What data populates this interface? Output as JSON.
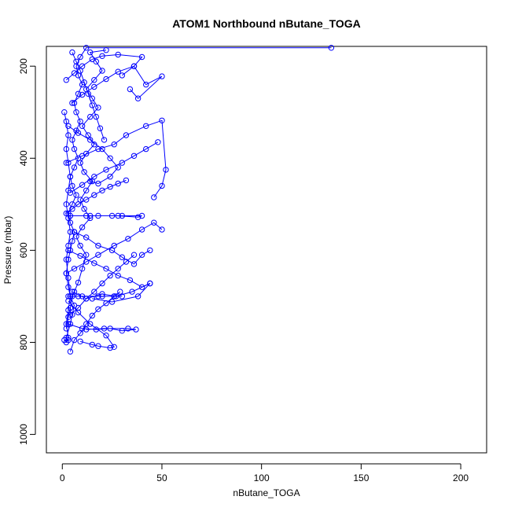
{
  "chart_data": {
    "type": "scatter",
    "title": "ATOM1 Northbound nButane_TOGA",
    "xlabel": "nButane_TOGA",
    "ylabel": "Pressure (mbar)",
    "xlim": [
      -8,
      213
    ],
    "ylim": [
      1040,
      157
    ],
    "y_reversed": true,
    "x_ticks": [
      0,
      50,
      100,
      150,
      200
    ],
    "y_ticks": [
      200,
      400,
      600,
      800,
      1000
    ],
    "grid": false,
    "legend": "none",
    "color": "#0000ff",
    "series": [
      {
        "values": [
          [
            1,
            795
          ],
          [
            2,
            800
          ],
          [
            3,
            795
          ],
          [
            2,
            790
          ],
          [
            4,
            760
          ],
          [
            5,
            740
          ],
          [
            6,
            720
          ],
          [
            4,
            700
          ],
          [
            3,
            680
          ],
          [
            2,
            650
          ],
          [
            3,
            620
          ],
          [
            4,
            600
          ],
          [
            5,
            580
          ],
          [
            6,
            560
          ],
          [
            4,
            540
          ],
          [
            3,
            520
          ],
          [
            5,
            500
          ],
          [
            7,
            480
          ],
          [
            5,
            460
          ],
          [
            4,
            440
          ],
          [
            6,
            420
          ],
          [
            8,
            400
          ],
          [
            6,
            380
          ],
          [
            5,
            360
          ],
          [
            7,
            340
          ],
          [
            9,
            320
          ],
          [
            7,
            300
          ],
          [
            6,
            280
          ],
          [
            8,
            260
          ],
          [
            10,
            240
          ],
          [
            8,
            220
          ],
          [
            7,
            200
          ],
          [
            9,
            180
          ],
          [
            12,
            160
          ],
          [
            135,
            160
          ]
        ]
      },
      {
        "values": [
          [
            2,
            770
          ],
          [
            3,
            745
          ],
          [
            4,
            725
          ],
          [
            5,
            700
          ],
          [
            6,
            690
          ],
          [
            8,
            670
          ],
          [
            10,
            640
          ],
          [
            12,
            610
          ],
          [
            9,
            590
          ],
          [
            7,
            570
          ],
          [
            10,
            550
          ],
          [
            14,
            530
          ],
          [
            11,
            510
          ],
          [
            9,
            490
          ],
          [
            12,
            470
          ],
          [
            15,
            450
          ],
          [
            11,
            430
          ],
          [
            9,
            410
          ],
          [
            12,
            390
          ],
          [
            16,
            370
          ],
          [
            13,
            350
          ],
          [
            10,
            330
          ],
          [
            14,
            310
          ],
          [
            18,
            290
          ],
          [
            15,
            270
          ],
          [
            12,
            250
          ],
          [
            16,
            230
          ],
          [
            20,
            210
          ],
          [
            17,
            190
          ],
          [
            14,
            170
          ],
          [
            22,
            165
          ]
        ]
      },
      {
        "values": [
          [
            3,
            700
          ],
          [
            10,
            700
          ],
          [
            20,
            700
          ],
          [
            26,
            700
          ],
          [
            30,
            700
          ],
          [
            18,
            700
          ],
          [
            8,
            700
          ],
          [
            4,
            700
          ]
        ]
      },
      {
        "values": [
          [
            4,
            525
          ],
          [
            12,
            525
          ],
          [
            18,
            525
          ],
          [
            25,
            525
          ],
          [
            28,
            525
          ],
          [
            38,
            528
          ],
          [
            40,
            525
          ],
          [
            30,
            525
          ],
          [
            14,
            525
          ]
        ]
      },
      {
        "values": [
          [
            5,
            690
          ],
          [
            12,
            705
          ],
          [
            20,
            695
          ],
          [
            27,
            700
          ],
          [
            35,
            690
          ],
          [
            44,
            672
          ],
          [
            38,
            700
          ],
          [
            25,
            712
          ],
          [
            15,
            705
          ]
        ]
      },
      {
        "values": [
          [
            3,
            710
          ],
          [
            8,
            735
          ],
          [
            14,
            760
          ],
          [
            22,
            785
          ],
          [
            26,
            810
          ],
          [
            24,
            812
          ],
          [
            18,
            808
          ],
          [
            15,
            805
          ],
          [
            9,
            798
          ]
        ]
      },
      {
        "values": [
          [
            2,
            650
          ],
          [
            6,
            640
          ],
          [
            12,
            625
          ],
          [
            18,
            610
          ],
          [
            26,
            590
          ],
          [
            33,
            575
          ],
          [
            40,
            555
          ],
          [
            46,
            540
          ],
          [
            50,
            555
          ]
        ]
      },
      {
        "values": [
          [
            2,
            410
          ],
          [
            10,
            395
          ],
          [
            18,
            380
          ],
          [
            26,
            370
          ],
          [
            32,
            350
          ],
          [
            42,
            330
          ],
          [
            50,
            318
          ],
          [
            52,
            425
          ],
          [
            50,
            460
          ],
          [
            46,
            485
          ]
        ]
      },
      {
        "values": [
          [
            3,
            600
          ],
          [
            9,
            612
          ],
          [
            16,
            628
          ],
          [
            22,
            640
          ],
          [
            28,
            655
          ],
          [
            34,
            665
          ],
          [
            40,
            680
          ],
          [
            44,
            672
          ]
        ]
      },
      {
        "values": [
          [
            4,
            475
          ],
          [
            10,
            458
          ],
          [
            16,
            440
          ],
          [
            22,
            425
          ],
          [
            30,
            410
          ],
          [
            36,
            395
          ],
          [
            42,
            380
          ],
          [
            48,
            365
          ]
        ]
      },
      {
        "values": [
          [
            5,
            280
          ],
          [
            10,
            262
          ],
          [
            16,
            245
          ],
          [
            22,
            228
          ],
          [
            28,
            212
          ],
          [
            36,
            200
          ],
          [
            42,
            240
          ],
          [
            50,
            222
          ],
          [
            38,
            270
          ],
          [
            34,
            250
          ]
        ]
      },
      {
        "values": [
          [
            6,
            560
          ],
          [
            12,
            572
          ],
          [
            18,
            590
          ],
          [
            25,
            600
          ],
          [
            30,
            615
          ],
          [
            36,
            630
          ],
          [
            40,
            610
          ],
          [
            44,
            600
          ]
        ]
      },
      {
        "values": [
          [
            3,
            760
          ],
          [
            10,
            770
          ],
          [
            17,
            772
          ],
          [
            24,
            770
          ],
          [
            30,
            775
          ],
          [
            37,
            772
          ],
          [
            33,
            770
          ],
          [
            21,
            770
          ],
          [
            12,
            772
          ]
        ]
      },
      {
        "values": [
          [
            2,
            230
          ],
          [
            6,
            215
          ],
          [
            10,
            200
          ],
          [
            15,
            185
          ],
          [
            20,
            178
          ],
          [
            28,
            175
          ],
          [
            40,
            180
          ],
          [
            36,
            200
          ],
          [
            30,
            220
          ]
        ]
      },
      {
        "values": [
          [
            4,
            740
          ],
          [
            8,
            725
          ],
          [
            12,
            705
          ],
          [
            16,
            690
          ],
          [
            20,
            672
          ],
          [
            24,
            655
          ],
          [
            28,
            640
          ],
          [
            32,
            625
          ],
          [
            36,
            610
          ]
        ]
      },
      {
        "values": [
          [
            3,
            330
          ],
          [
            8,
            345
          ],
          [
            14,
            360
          ],
          [
            20,
            380
          ],
          [
            24,
            400
          ],
          [
            28,
            420
          ],
          [
            24,
            440
          ],
          [
            18,
            455
          ],
          [
            14,
            450
          ]
        ]
      },
      {
        "values": [
          [
            2,
            520
          ],
          [
            5,
            510
          ],
          [
            8,
            500
          ],
          [
            12,
            490
          ],
          [
            16,
            480
          ],
          [
            20,
            470
          ],
          [
            24,
            462
          ],
          [
            28,
            455
          ],
          [
            32,
            448
          ]
        ]
      },
      {
        "values": [
          [
            4,
            820
          ],
          [
            6,
            795
          ],
          [
            9,
            780
          ],
          [
            12,
            760
          ],
          [
            15,
            742
          ],
          [
            18,
            728
          ],
          [
            22,
            715
          ],
          [
            26,
            700
          ],
          [
            29,
            690
          ]
        ]
      },
      {
        "values": [
          [
            1,
            300
          ],
          [
            2,
            320
          ],
          [
            3,
            350
          ],
          [
            2,
            380
          ],
          [
            3,
            410
          ],
          [
            4,
            440
          ],
          [
            3,
            470
          ],
          [
            2,
            500
          ],
          [
            3,
            530
          ],
          [
            4,
            560
          ],
          [
            3,
            590
          ],
          [
            2,
            620
          ],
          [
            3,
            660
          ],
          [
            4,
            700
          ],
          [
            3,
            730
          ],
          [
            2,
            760
          ],
          [
            3,
            790
          ]
        ]
      },
      {
        "values": [
          [
            5,
            170
          ],
          [
            7,
            190
          ],
          [
            9,
            210
          ],
          [
            11,
            235
          ],
          [
            13,
            260
          ],
          [
            15,
            285
          ],
          [
            17,
            310
          ],
          [
            19,
            335
          ],
          [
            21,
            360
          ]
        ]
      }
    ]
  }
}
